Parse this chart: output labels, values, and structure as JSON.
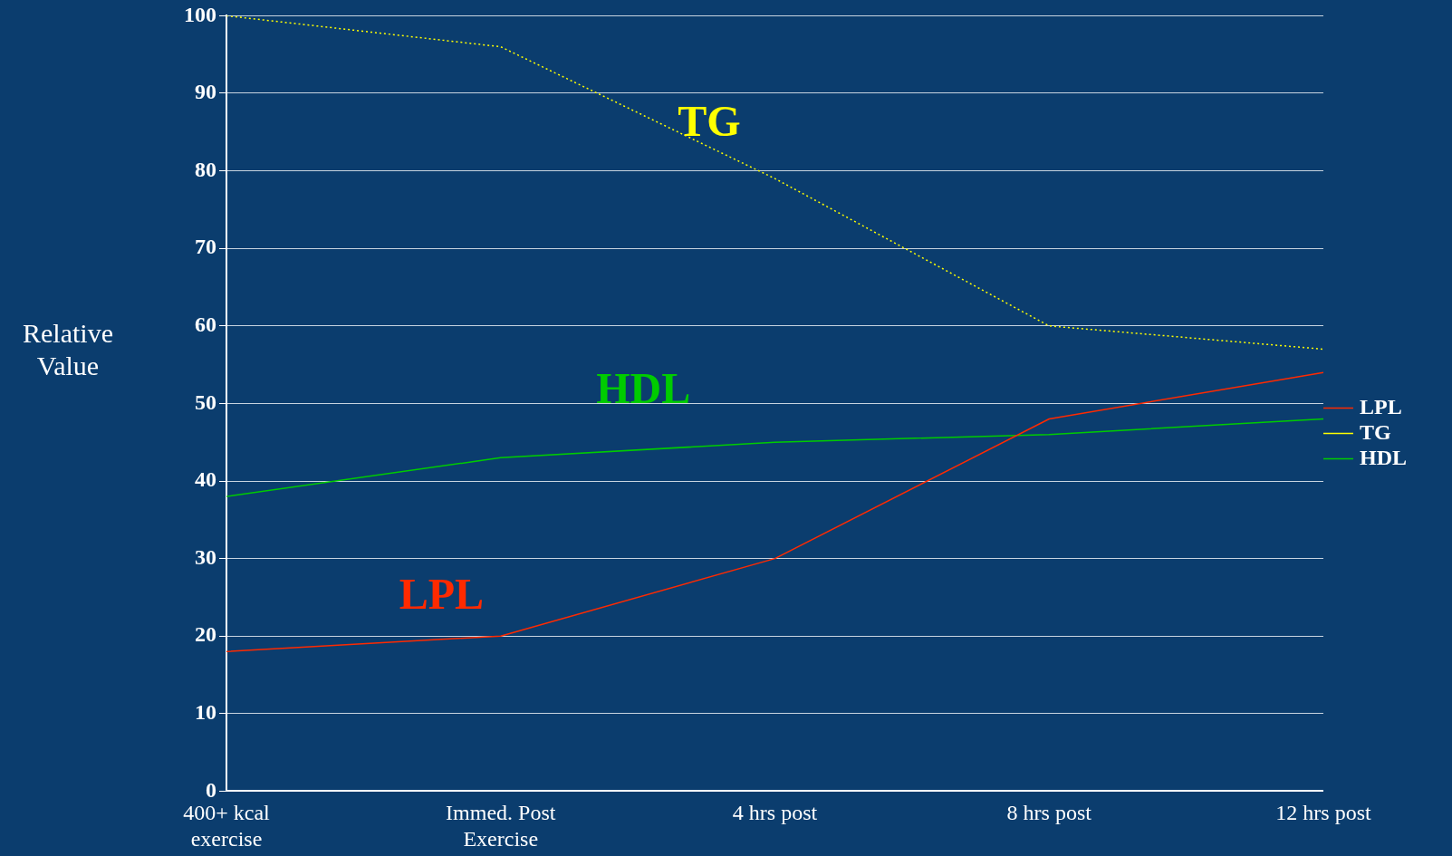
{
  "chart_data": {
    "type": "line",
    "ylabel": "Relative Value",
    "categories": [
      "400+ kcal exercise",
      "Immed. Post Exercise",
      "4 hrs post",
      "8 hrs post",
      "12 hrs post"
    ],
    "series": [
      {
        "name": "LPL",
        "color": "#ff2a00",
        "values": [
          18,
          20,
          30,
          48,
          54
        ],
        "line_style": "solid"
      },
      {
        "name": "TG",
        "color": "#ffff00",
        "values": [
          100,
          96,
          79,
          60,
          57
        ],
        "line_style": "dotted"
      },
      {
        "name": "HDL",
        "color": "#00cc00",
        "values": [
          38,
          43,
          45,
          46,
          48
        ],
        "line_style": "solid"
      }
    ],
    "ylim": [
      0,
      100
    ],
    "yticks": [
      0,
      10,
      20,
      30,
      40,
      50,
      60,
      70,
      80,
      90,
      100
    ],
    "grid": "y",
    "legend": "right",
    "marker": "none",
    "annotations": [
      "LPL",
      "TG",
      "HDL"
    ]
  }
}
